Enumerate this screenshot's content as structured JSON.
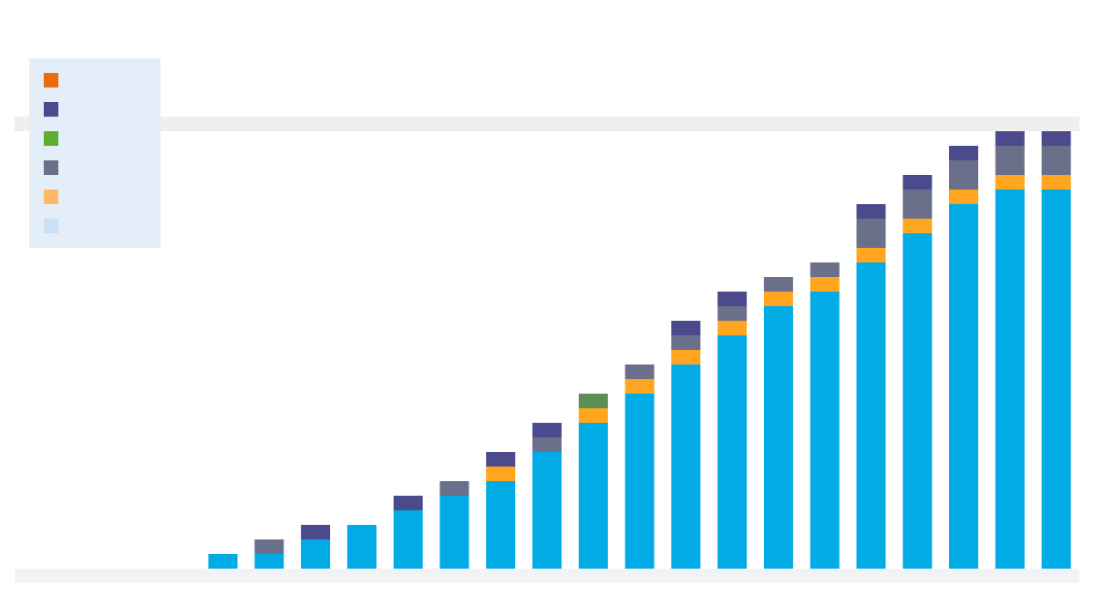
{
  "chart_data": {
    "type": "bar",
    "stacked": true,
    "title": "",
    "xlabel": "",
    "ylabel": "",
    "categories": [
      "",
      "",
      "",
      "",
      "",
      "",
      "",
      "",
      "",
      "",
      "",
      "",
      "",
      "",
      "",
      "",
      "",
      "",
      "",
      "",
      "",
      "",
      ""
    ],
    "ylim": [
      0,
      31
    ],
    "grid": true,
    "legend_position": "top-left",
    "series": [
      {
        "color": "#ec6c0c",
        "values": [
          0,
          0,
          0,
          0,
          0,
          0,
          0,
          0,
          0,
          0,
          0,
          0,
          0,
          0,
          0,
          0,
          0,
          0,
          0,
          0,
          0,
          0,
          0
        ]
      },
      {
        "color": "#00abe6",
        "values": [
          0,
          0,
          0,
          0,
          1,
          1,
          2,
          3,
          4,
          5,
          6,
          8,
          10,
          12,
          14,
          16,
          18,
          19,
          21,
          23,
          25,
          26,
          26
        ]
      },
      {
        "color": "#ffa51f",
        "values": [
          0,
          0,
          0,
          0,
          0,
          0,
          0,
          0,
          0,
          0,
          1,
          0,
          1,
          1,
          1,
          1,
          1,
          1,
          1,
          1,
          1,
          1,
          1
        ]
      },
      {
        "color": "#6a7089",
        "values": [
          0,
          0,
          0,
          0,
          0,
          1,
          0,
          0,
          0,
          1,
          0,
          1,
          0,
          1,
          1,
          1,
          1,
          1,
          2,
          2,
          2,
          2,
          2
        ]
      },
      {
        "color": "#4b4a8c",
        "values": [
          0,
          0,
          0,
          0,
          0,
          0,
          1,
          0,
          1,
          0,
          1,
          1,
          0,
          0,
          1,
          1,
          0,
          0,
          1,
          1,
          1,
          1,
          1
        ]
      },
      {
        "color": "#5a8f58",
        "values": [
          0,
          0,
          0,
          0,
          0,
          0,
          0,
          0,
          0,
          0,
          0,
          0,
          1,
          0,
          0,
          0,
          0,
          0,
          0,
          0,
          0,
          0,
          0
        ]
      }
    ]
  },
  "legend": {
    "items": [
      {
        "label": "",
        "color": "#ec6c0c"
      },
      {
        "label": "",
        "color": "#4b4a8c"
      },
      {
        "label": "",
        "color": "#5fae2d"
      },
      {
        "label": "",
        "color": "#6a7089"
      },
      {
        "label": "",
        "color": "#fdb86a"
      },
      {
        "label": "",
        "color": "#c9e0f5"
      }
    ]
  },
  "source": ""
}
